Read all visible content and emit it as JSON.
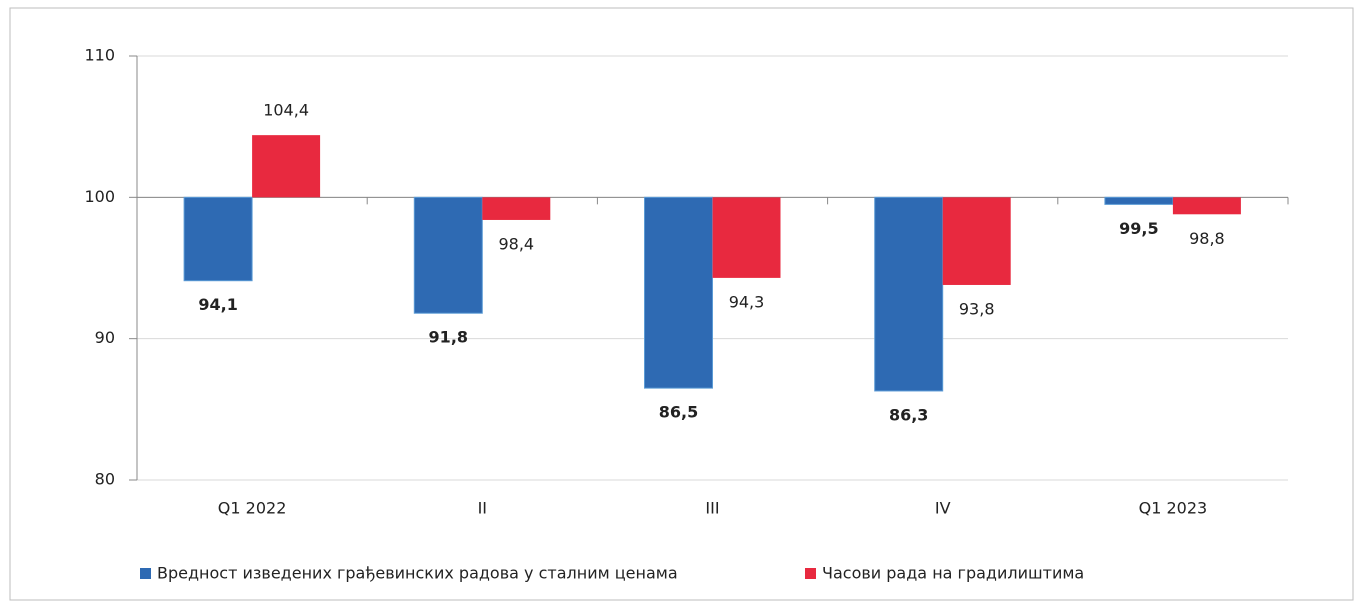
{
  "chart_data": {
    "type": "bar",
    "categories": [
      "Q1 2022",
      "II",
      "III",
      "IV",
      "Q1 2023"
    ],
    "series": [
      {
        "name": "Вредност изведених грађевинских радова у сталним ценама",
        "color": "#2e6ab3",
        "values": [
          94.1,
          91.8,
          86.5,
          86.3,
          99.5
        ],
        "value_labels": [
          "94,1",
          "91,8",
          "86,5",
          "86,3",
          "99,5"
        ]
      },
      {
        "name": "Часови рада на градилиштима",
        "color": "#e8293f",
        "values": [
          104.4,
          98.4,
          94.3,
          93.8,
          98.8
        ],
        "value_labels": [
          "104,4",
          "98,4",
          "94,3",
          "93,8",
          "98,8"
        ]
      }
    ],
    "ylim": [
      80,
      110
    ],
    "yticks": [
      80,
      90,
      100,
      110
    ],
    "baseline": 100,
    "grid": true,
    "legend": "bottom"
  }
}
